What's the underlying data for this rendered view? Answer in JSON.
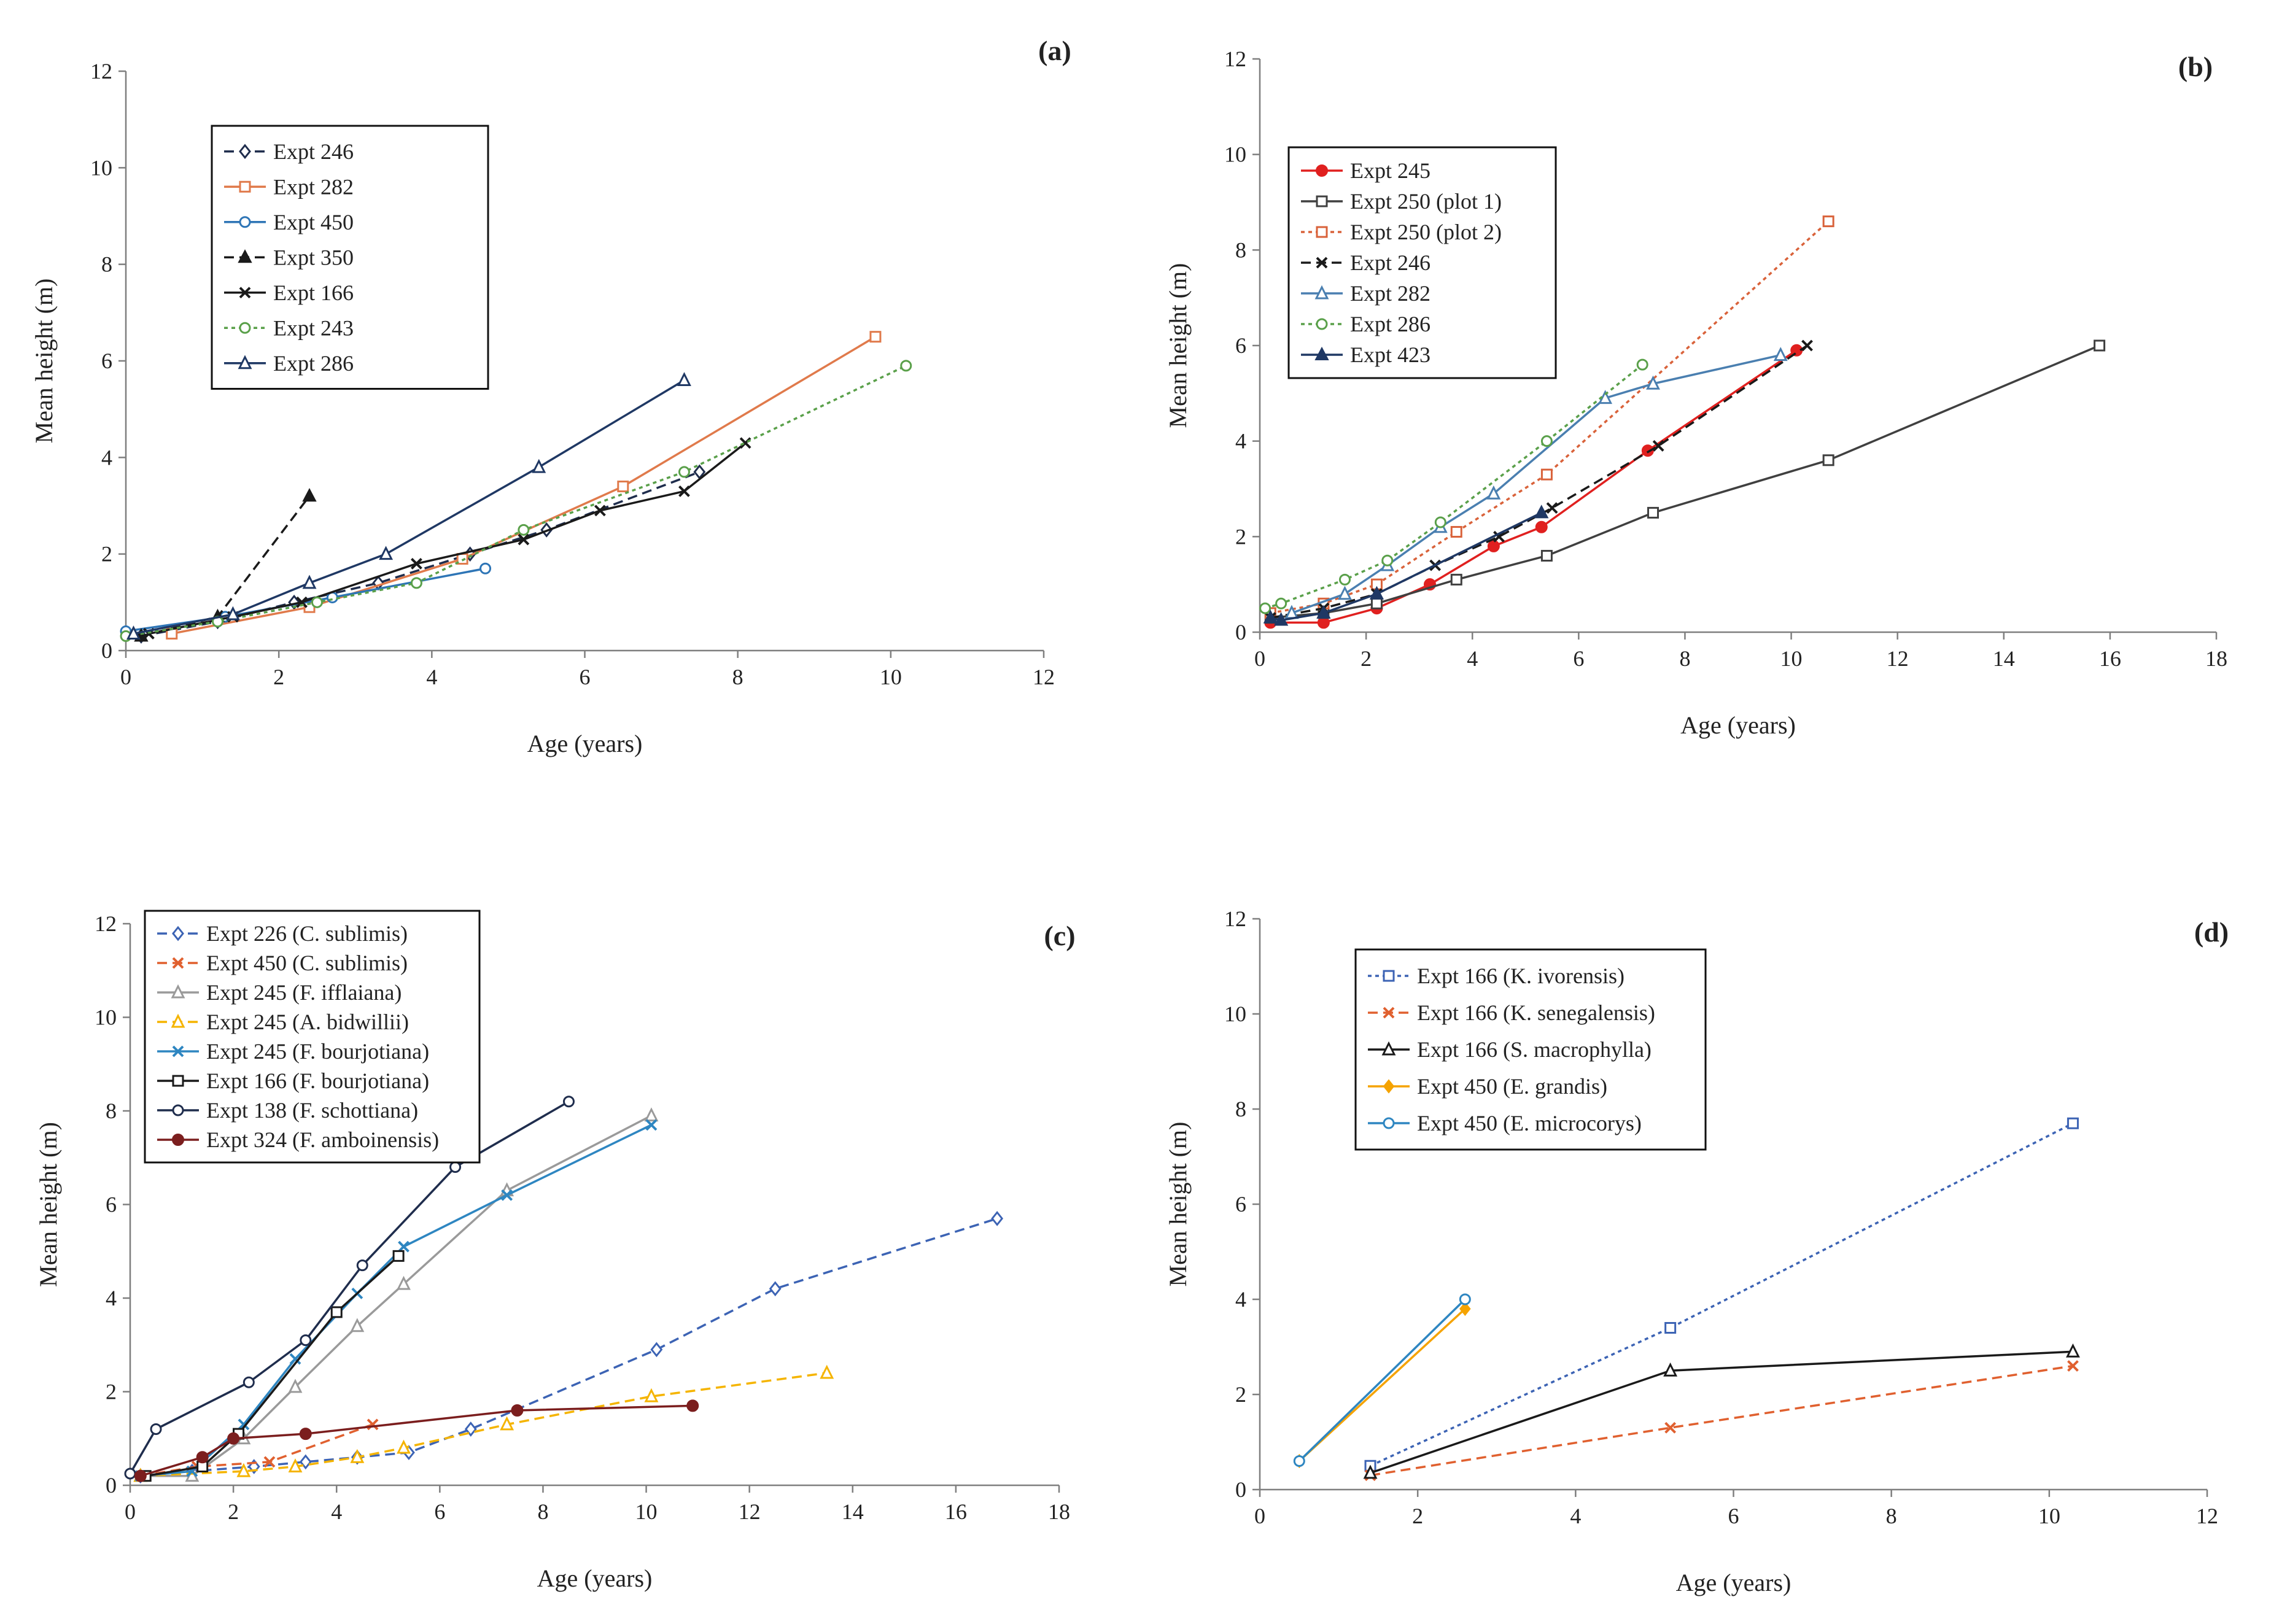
{
  "chart_data": [
    {
      "panel": "(a)",
      "type": "line",
      "xlabel": "Age (years)",
      "ylabel": "Mean height (m)",
      "xlim": [
        0,
        12
      ],
      "ylim": [
        0,
        12
      ],
      "xticks": [
        0,
        2,
        4,
        6,
        8,
        10,
        12
      ],
      "yticks": [
        0,
        2,
        4,
        6,
        8,
        10,
        12
      ],
      "legend_position": "top-left",
      "series": [
        {
          "name": "Expt 246",
          "color": "#1f2d4d",
          "dash": "dashed",
          "marker": "diamond",
          "x": [
            0.2,
            1.2,
            2.2,
            3.3,
            4.5,
            5.5,
            7.5
          ],
          "y": [
            0.3,
            0.6,
            1.0,
            1.4,
            2.0,
            2.5,
            3.7
          ]
        },
        {
          "name": "Expt 282",
          "color": "#e07a4b",
          "dash": "solid",
          "marker": "square",
          "x": [
            0.6,
            2.4,
            4.4,
            6.5,
            9.8
          ],
          "y": [
            0.35,
            0.9,
            1.9,
            3.4,
            6.5
          ]
        },
        {
          "name": "Expt 450",
          "color": "#2e75b6",
          "dash": "solid",
          "marker": "circle",
          "x": [
            0.0,
            1.3,
            2.7,
            4.7
          ],
          "y": [
            0.4,
            0.7,
            1.1,
            1.7
          ]
        },
        {
          "name": "Expt 350",
          "color": "#1a1a1a",
          "dash": "dashed",
          "marker": "triangle-filled",
          "x": [
            0.2,
            1.2,
            2.4
          ],
          "y": [
            0.3,
            0.7,
            3.2
          ]
        },
        {
          "name": "Expt 166",
          "color": "#1a1a1a",
          "dash": "solid",
          "marker": "x",
          "x": [
            0.3,
            1.4,
            2.3,
            3.8,
            5.2,
            6.2,
            7.3,
            8.1
          ],
          "y": [
            0.35,
            0.7,
            1.0,
            1.8,
            2.3,
            2.9,
            3.3,
            4.3
          ]
        },
        {
          "name": "Expt 243",
          "color": "#5aa04a",
          "dash": "dotted",
          "marker": "circle",
          "x": [
            0.0,
            1.2,
            2.5,
            3.8,
            5.2,
            7.3,
            10.2
          ],
          "y": [
            0.3,
            0.6,
            1.0,
            1.4,
            2.5,
            3.7,
            5.9
          ]
        },
        {
          "name": "Expt 286",
          "color": "#1f3864",
          "dash": "solid",
          "marker": "triangle",
          "x": [
            0.1,
            1.4,
            2.4,
            3.4,
            5.4,
            7.3
          ],
          "y": [
            0.35,
            0.75,
            1.4,
            2.0,
            3.8,
            5.6
          ]
        }
      ]
    },
    {
      "panel": "(b)",
      "type": "line",
      "xlabel": "Age (years)",
      "ylabel": "Mean height (m)",
      "xlim": [
        0,
        18
      ],
      "ylim": [
        0,
        12
      ],
      "xticks": [
        0,
        2,
        4,
        6,
        8,
        10,
        12,
        14,
        16,
        18
      ],
      "yticks": [
        0,
        2,
        4,
        6,
        8,
        10,
        12
      ],
      "legend_position": "top-left",
      "series": [
        {
          "name": "Expt 245",
          "color": "#e0201f",
          "dash": "solid",
          "marker": "circle-filled",
          "x": [
            0.2,
            1.2,
            2.2,
            3.2,
            4.4,
            5.3,
            7.3,
            10.1
          ],
          "y": [
            0.2,
            0.2,
            0.5,
            1.0,
            1.8,
            2.2,
            3.8,
            5.9
          ]
        },
        {
          "name": "Expt 250 (plot 1)",
          "color": "#404040",
          "dash": "solid",
          "marker": "square",
          "x": [
            0.2,
            1.2,
            2.2,
            3.7,
            5.4,
            7.4,
            10.7,
            15.8
          ],
          "y": [
            0.3,
            0.4,
            0.6,
            1.1,
            1.6,
            2.5,
            3.6,
            6.0
          ]
        },
        {
          "name": "Expt 250 (plot 2)",
          "color": "#d9623a",
          "dash": "dotted",
          "marker": "square",
          "x": [
            0.2,
            1.2,
            2.2,
            3.7,
            5.4,
            10.7
          ],
          "y": [
            0.4,
            0.6,
            1.0,
            2.1,
            3.3,
            8.6
          ]
        },
        {
          "name": "Expt 246",
          "color": "#1a1a1a",
          "dash": "dashed",
          "marker": "x",
          "x": [
            0.2,
            1.2,
            2.2,
            3.3,
            4.5,
            5.5,
            7.5,
            10.3
          ],
          "y": [
            0.3,
            0.5,
            0.8,
            1.4,
            2.0,
            2.6,
            3.9,
            6.0
          ]
        },
        {
          "name": "Expt 282",
          "color": "#4a7fb0",
          "dash": "solid",
          "marker": "triangle",
          "x": [
            0.6,
            1.6,
            2.4,
            3.4,
            4.4,
            6.5,
            7.4,
            9.8
          ],
          "y": [
            0.4,
            0.8,
            1.4,
            2.2,
            2.9,
            4.9,
            5.2,
            5.8
          ]
        },
        {
          "name": "Expt 286",
          "color": "#5aa04a",
          "dash": "dotted",
          "marker": "circle",
          "x": [
            0.1,
            0.4,
            1.6,
            2.4,
            3.4,
            5.4,
            7.2
          ],
          "y": [
            0.5,
            0.6,
            1.1,
            1.5,
            2.3,
            4.0,
            5.6
          ]
        },
        {
          "name": "Expt 423",
          "color": "#1f3864",
          "dash": "solid",
          "marker": "triangle-filled",
          "x": [
            0.2,
            0.4,
            1.2,
            2.2,
            5.3
          ],
          "y": [
            0.3,
            0.25,
            0.4,
            0.8,
            2.5
          ]
        }
      ]
    },
    {
      "panel": "(c)",
      "type": "line",
      "xlabel": "Age (years)",
      "ylabel": "Mean height (m)",
      "xlim": [
        0,
        18
      ],
      "ylim": [
        0,
        12
      ],
      "xticks": [
        0,
        2,
        4,
        6,
        8,
        10,
        12,
        14,
        16,
        18
      ],
      "yticks": [
        0,
        2,
        4,
        6,
        8,
        10,
        12
      ],
      "legend_position": "top-left",
      "series": [
        {
          "name": "Expt 226 (C. sublimis)",
          "color": "#3c63b4",
          "dash": "dashed",
          "marker": "diamond",
          "x": [
            0.2,
            1.2,
            2.4,
            3.4,
            4.4,
            5.4,
            6.6,
            10.2,
            12.5,
            16.8
          ],
          "y": [
            0.2,
            0.3,
            0.4,
            0.5,
            0.6,
            0.7,
            1.2,
            2.9,
            4.2,
            5.7
          ]
        },
        {
          "name": "Expt 450 (C. sublimis)",
          "color": "#e0602f",
          "dash": "dashed",
          "marker": "x",
          "x": [
            0.2,
            1.3,
            2.7,
            4.7
          ],
          "y": [
            0.2,
            0.4,
            0.5,
            1.3
          ]
        },
        {
          "name": "Expt 245 (F. ifflaiana)",
          "color": "#9a9a9a",
          "dash": "solid",
          "marker": "triangle",
          "x": [
            0.2,
            1.2,
            2.2,
            3.2,
            4.4,
            5.3,
            7.3,
            10.1
          ],
          "y": [
            0.2,
            0.2,
            1.0,
            2.1,
            3.4,
            4.3,
            6.3,
            7.9
          ]
        },
        {
          "name": "Expt 245 (A. bidwillii)",
          "color": "#f5b400",
          "dash": "dashed",
          "marker": "triangle",
          "x": [
            0.2,
            2.2,
            3.2,
            4.4,
            5.3,
            7.3,
            10.1,
            13.5
          ],
          "y": [
            0.2,
            0.3,
            0.4,
            0.6,
            0.8,
            1.3,
            1.9,
            2.4
          ]
        },
        {
          "name": "Expt 245 (F. bourjotiana)",
          "color": "#2e86c1",
          "dash": "solid",
          "marker": "x",
          "x": [
            0.2,
            1.2,
            2.2,
            3.2,
            4.4,
            5.3,
            7.3,
            10.1
          ],
          "y": [
            0.2,
            0.3,
            1.3,
            2.7,
            4.1,
            5.1,
            6.2,
            7.7
          ]
        },
        {
          "name": "Expt 166 (F. bourjotiana)",
          "color": "#1a1a1a",
          "dash": "solid",
          "marker": "square",
          "x": [
            0.3,
            1.4,
            2.1,
            4.0,
            5.2
          ],
          "y": [
            0.2,
            0.4,
            1.1,
            3.7,
            4.9
          ]
        },
        {
          "name": "Expt 138 (F. schottiana)",
          "color": "#1f2d4d",
          "dash": "solid",
          "marker": "circle",
          "x": [
            0.0,
            0.5,
            2.3,
            3.4,
            4.5,
            6.3,
            8.5
          ],
          "y": [
            0.25,
            1.2,
            2.2,
            3.1,
            4.7,
            6.8,
            8.2
          ]
        },
        {
          "name": "Expt 324 (F. amboinensis)",
          "color": "#7b1e1e",
          "dash": "solid",
          "marker": "circle-filled",
          "x": [
            0.2,
            1.4,
            2.0,
            3.4,
            7.5,
            10.9
          ],
          "y": [
            0.2,
            0.6,
            1.0,
            1.1,
            1.6,
            1.7
          ]
        }
      ]
    },
    {
      "panel": "(d)",
      "type": "line",
      "xlabel": "Age (years)",
      "ylabel": "Mean height (m)",
      "xlim": [
        0,
        12
      ],
      "ylim": [
        0,
        12
      ],
      "xticks": [
        0,
        2,
        4,
        6,
        8,
        10,
        12
      ],
      "yticks": [
        0,
        2,
        4,
        6,
        8,
        10,
        12
      ],
      "legend_position": "top-left",
      "series": [
        {
          "name": "Expt 166 (K. ivorensis)",
          "color": "#3c63b4",
          "dash": "dotted",
          "marker": "square",
          "x": [
            1.4,
            5.2,
            10.3
          ],
          "y": [
            0.5,
            3.4,
            7.7
          ]
        },
        {
          "name": "Expt 166 (K. senegalensis)",
          "color": "#e0602f",
          "dash": "dashed",
          "marker": "x",
          "x": [
            1.4,
            5.2,
            10.3
          ],
          "y": [
            0.3,
            1.3,
            2.6
          ]
        },
        {
          "name": "Expt 166 (S. macrophylla)",
          "color": "#1a1a1a",
          "dash": "solid",
          "marker": "triangle",
          "x": [
            1.4,
            5.2,
            10.3
          ],
          "y": [
            0.35,
            2.5,
            2.9
          ]
        },
        {
          "name": "Expt 450 (E. grandis)",
          "color": "#f5a300",
          "dash": "solid",
          "marker": "diamond-filled",
          "x": [
            0.5,
            2.6
          ],
          "y": [
            0.6,
            3.8
          ]
        },
        {
          "name": "Expt 450 (E. microcorys)",
          "color": "#2e86c1",
          "dash": "solid",
          "marker": "circle",
          "x": [
            0.5,
            2.6
          ],
          "y": [
            0.6,
            4.0
          ]
        }
      ]
    }
  ]
}
